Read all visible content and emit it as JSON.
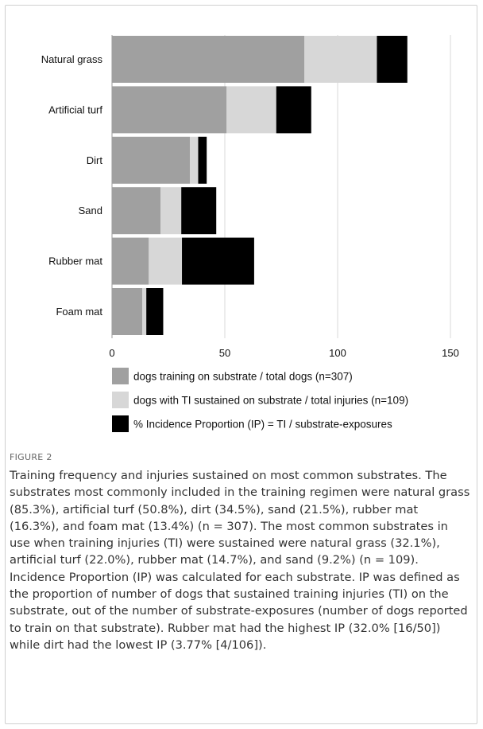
{
  "chart_data": {
    "type": "bar",
    "orientation": "horizontal",
    "stacked": true,
    "categories": [
      "Natural grass",
      "Artificial turf",
      "Dirt",
      "Sand",
      "Rubber mat",
      "Foam mat"
    ],
    "series": [
      {
        "name": "dogs training on substrate / total dogs (n=307)",
        "values": [
          85.3,
          50.8,
          34.5,
          21.5,
          16.3,
          13.4
        ],
        "color": "#a0a0a0"
      },
      {
        "name": "dogs with TI sustained on substrate / total injuries (n=109)",
        "values": [
          32.1,
          22.0,
          3.7,
          9.2,
          14.7,
          1.8
        ],
        "color": "#d7d7d7"
      },
      {
        "name": "% Incidence Proportion (IP) = TI / substrate-exposures",
        "values": [
          13.5,
          15.5,
          3.77,
          15.5,
          32.0,
          7.5
        ],
        "color": "#000000"
      }
    ],
    "xlim": [
      0,
      150
    ],
    "xticks": [
      0,
      50,
      100,
      150
    ],
    "xtick_labels": [
      "0",
      "50",
      "100",
      "150"
    ],
    "grid": "vertical",
    "legend_position": "bottom"
  },
  "figure": {
    "label": "FIGURE 2",
    "caption": "Training frequency and injuries sustained on most common substrates. The substrates most commonly included in the training regimen were natural grass (85.3%), artificial turf (50.8%), dirt (34.5%), sand (21.5%), rubber mat (16.3%), and foam mat (13.4%) (n = 307). The most common substrates in use when training injuries (TI) were sustained were natural grass (32.1%), artificial turf (22.0%), rubber mat (14.7%), and sand (9.2%) (n = 109). Incidence Proportion (IP) was calculated for each substrate. IP was defined as the proportion of number of dogs that sustained training injuries (TI) on the substrate, out of the number of substrate-exposures (number of dogs reported to train on that substrate). Rubber mat had the highest IP (32.0% [16/50]) while dirt had the lowest IP (3.77% [4/106])."
  }
}
